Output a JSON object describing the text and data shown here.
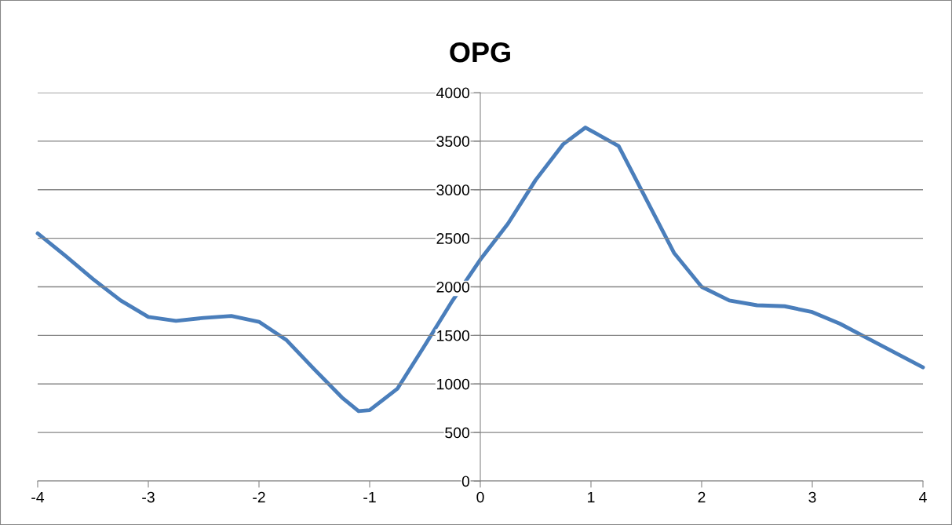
{
  "chart_data": {
    "type": "line",
    "title": "OPG",
    "x": [
      -4,
      -3.75,
      -3.5,
      -3.25,
      -3,
      -2.75,
      -2.5,
      -2.25,
      -2,
      -1.75,
      -1.5,
      -1.25,
      -1.1,
      -1,
      -0.75,
      -0.5,
      -0.25,
      0,
      0.25,
      0.5,
      0.75,
      0.95,
      1.25,
      1.5,
      1.75,
      2,
      2.25,
      2.5,
      2.75,
      3,
      3.25,
      3.5,
      3.75,
      4
    ],
    "series": [
      {
        "color": "#4a7ebb",
        "values": [
          2550,
          2320,
          2080,
          1860,
          1690,
          1650,
          1680,
          1700,
          1640,
          1450,
          1150,
          860,
          720,
          730,
          950,
          1400,
          1860,
          2280,
          2650,
          3100,
          3470,
          3640,
          3450,
          2900,
          2350,
          2000,
          1860,
          1810,
          1800,
          1740,
          1620,
          1470,
          1320,
          1170
        ]
      }
    ],
    "xlim": [
      -4,
      4
    ],
    "xticks": [
      -4,
      -3,
      -2,
      -1,
      0,
      1,
      2,
      3,
      4
    ],
    "ylim": [
      0,
      4000
    ],
    "yticks": [
      0,
      500,
      1000,
      1500,
      2000,
      2500,
      3000,
      3500,
      4000
    ],
    "grid": "y",
    "legend": false,
    "marker": "none",
    "line_style": "solid"
  }
}
